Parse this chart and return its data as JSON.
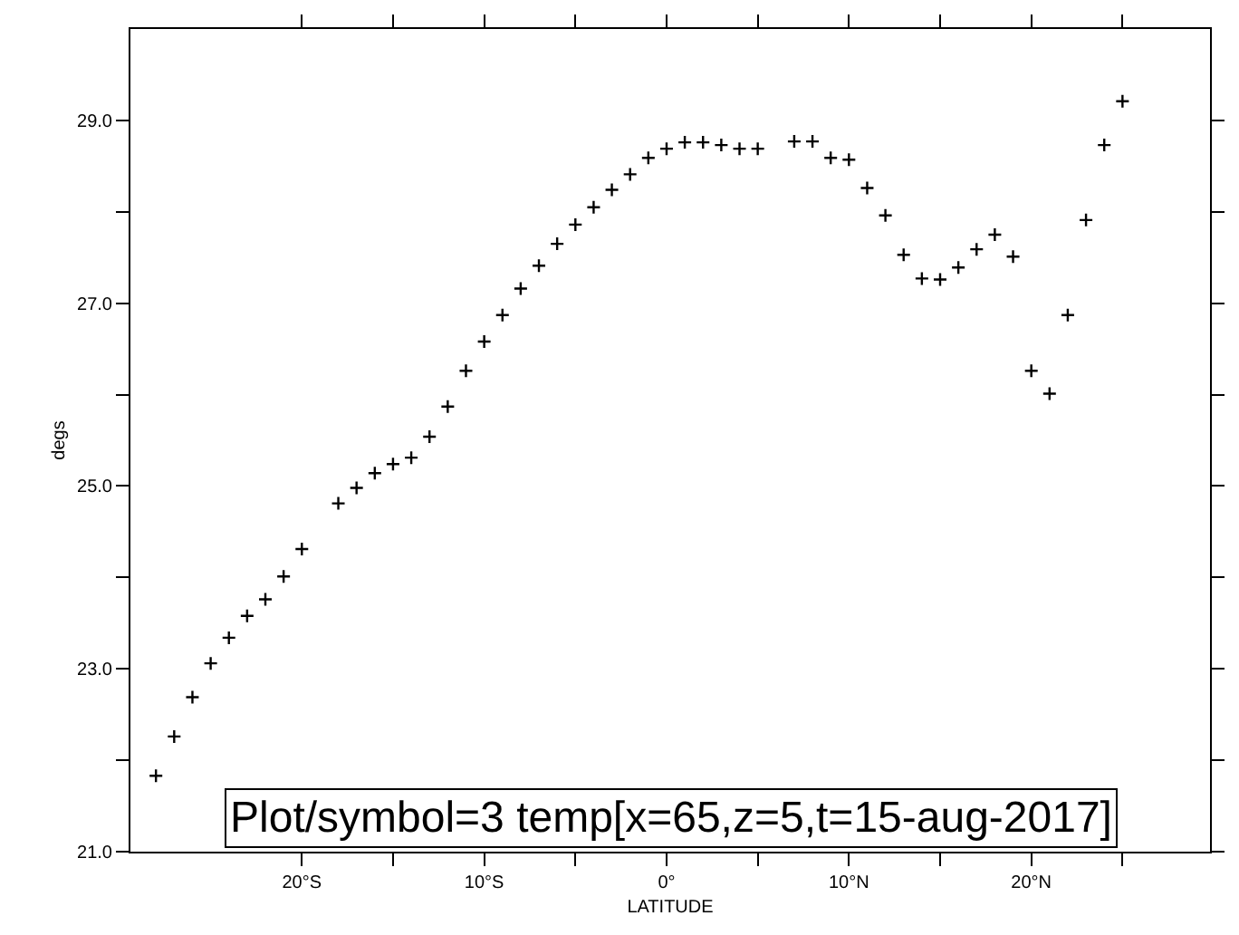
{
  "chart_data": {
    "type": "scatter",
    "title": "Plot/symbol=3 temp[x=65,z=5,t=15-aug-2017]",
    "xlabel": "LATITUDE",
    "ylabel": "degs",
    "x": [
      -28,
      -27,
      -26,
      -25,
      -24,
      -23,
      -22,
      -21,
      -20,
      -19,
      -18,
      -17,
      -16,
      -15,
      -14,
      -13,
      -12,
      -11,
      -10,
      -9,
      -8,
      -7,
      -6,
      -5,
      -4,
      -3,
      -2,
      -1,
      0,
      1,
      2,
      3,
      4,
      5,
      6,
      7,
      8,
      9,
      10,
      11,
      12,
      13,
      14,
      15,
      16,
      17,
      18,
      19,
      20,
      21,
      22,
      23,
      24,
      25
    ],
    "series": [
      {
        "color": "#000000",
        "values": [
          21.83,
          22.26,
          22.69,
          23.06,
          23.34,
          23.58,
          23.76,
          24.01,
          24.31,
          null,
          24.81,
          24.98,
          25.14,
          25.24,
          25.31,
          25.54,
          25.87,
          26.26,
          26.58,
          26.87,
          27.16,
          27.41,
          27.65,
          27.86,
          28.05,
          28.24,
          28.41,
          28.59,
          28.69,
          28.76,
          28.76,
          28.73,
          28.69,
          28.69,
          null,
          28.77,
          28.77,
          28.59,
          28.57,
          28.26,
          27.96,
          27.53,
          27.27,
          27.26,
          27.39,
          27.59,
          27.75,
          27.51,
          26.26,
          26.01,
          26.87,
          27.91,
          28.73,
          29.21
        ]
      }
    ],
    "xlim": [
      -29.4,
      29.8
    ],
    "xticks": [
      {
        "value": -20,
        "label": "20°S"
      },
      {
        "value": -15,
        "label": null
      },
      {
        "value": -10,
        "label": "10°S"
      },
      {
        "value": -5,
        "label": null
      },
      {
        "value": 0,
        "label": "0°"
      },
      {
        "value": 5,
        "label": null
      },
      {
        "value": 10,
        "label": "10°N"
      },
      {
        "value": 15,
        "label": null
      },
      {
        "value": 20,
        "label": "20°N"
      },
      {
        "value": 25,
        "label": null
      }
    ],
    "ylim": [
      21,
      30
    ],
    "yticks": [
      {
        "value": 21,
        "label": "21.0"
      },
      {
        "value": 22,
        "label": null
      },
      {
        "value": 23,
        "label": "23.0"
      },
      {
        "value": 24,
        "label": null
      },
      {
        "value": 25,
        "label": "25.0"
      },
      {
        "value": 26,
        "label": null
      },
      {
        "value": 27,
        "label": "27.0"
      },
      {
        "value": 28,
        "label": null
      },
      {
        "value": 29,
        "label": "29.0"
      }
    ],
    "marker": "cross"
  }
}
